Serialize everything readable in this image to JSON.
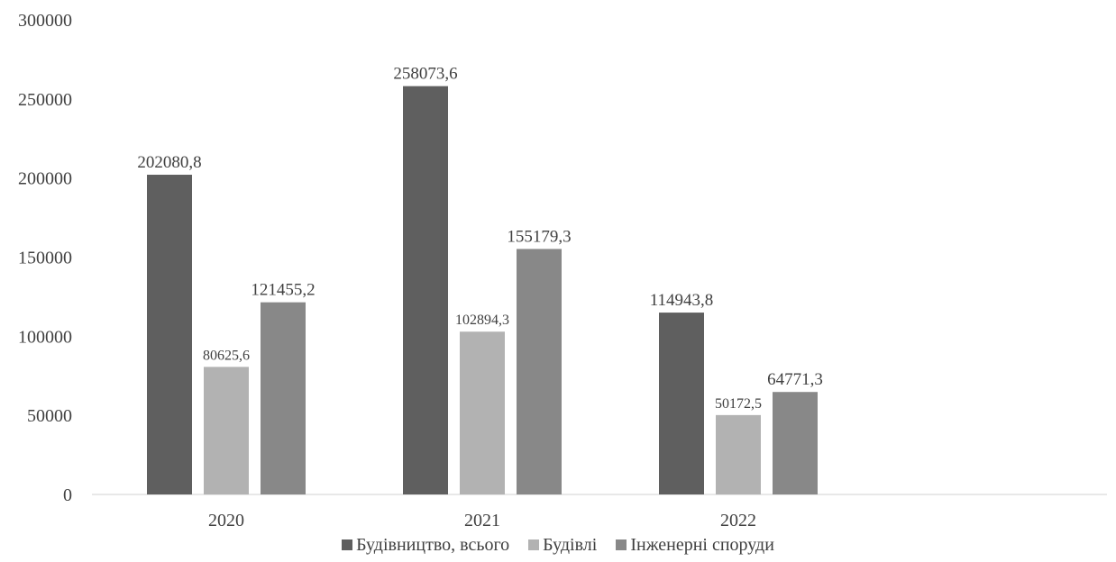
{
  "chart_data": {
    "type": "bar",
    "categories": [
      "2020",
      "2021",
      "2022"
    ],
    "series": [
      {
        "name": "Будівництво, всього",
        "color": "#5f5f5f",
        "values": [
          202080.8,
          258073.6,
          114943.8
        ],
        "labels": [
          "202080,8",
          "258073,6",
          "114943,8"
        ]
      },
      {
        "name": "Будівлі",
        "color": "#b2b2b2",
        "values": [
          80625.6,
          102894.3,
          50172.5
        ],
        "labels": [
          "80625,6",
          "102894,3",
          "50172,5"
        ]
      },
      {
        "name": "Інженерні споруди",
        "color": "#888888",
        "values": [
          121455.2,
          155179.3,
          64771.3
        ],
        "labels": [
          "121455,2",
          "155179,3",
          "64771,3"
        ]
      }
    ],
    "y_ticks": [
      "0",
      "50000",
      "100000",
      "150000",
      "200000",
      "250000",
      "300000"
    ],
    "ylim": [
      0,
      300000
    ],
    "grid": false,
    "legend_position": "bottom"
  }
}
